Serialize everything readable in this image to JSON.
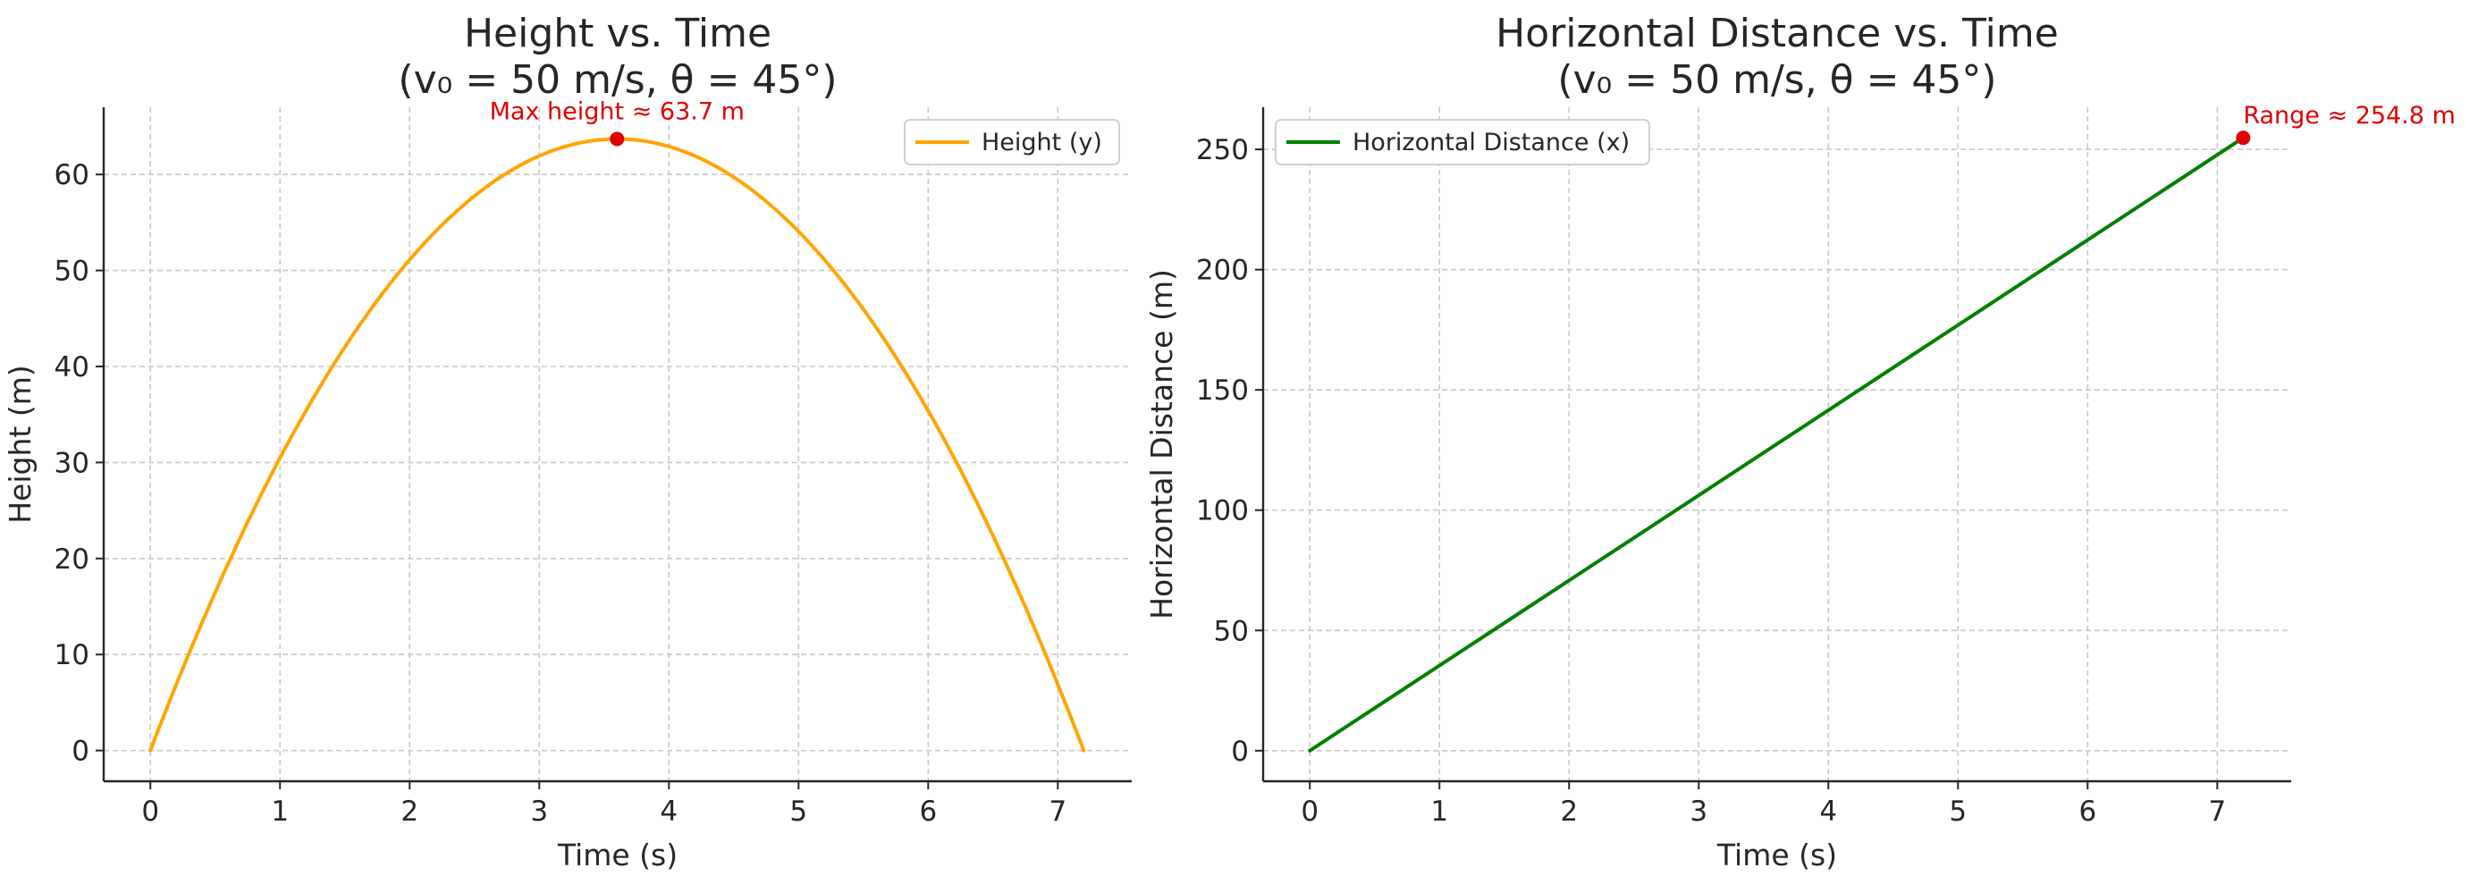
{
  "colors": {
    "height_series": "#ffa500",
    "distance_series": "#008000",
    "annotation": "#e00000",
    "axis": "#262626",
    "grid": "#c8c8c8"
  },
  "chart_data": [
    {
      "type": "line",
      "title_lines": [
        "Height vs. Time",
        "(v₀ = 50 m/s, θ = 45°)"
      ],
      "xlabel": "Time (s)",
      "ylabel": "Height (m)",
      "xlim": [
        -0.36,
        7.57
      ],
      "ylim": [
        -3.2,
        67
      ],
      "xticks": [
        0,
        1,
        2,
        3,
        4,
        5,
        6,
        7
      ],
      "yticks": [
        0,
        10,
        20,
        30,
        40,
        50,
        60
      ],
      "grid": true,
      "legend_position": "upper-right",
      "series": [
        {
          "name": "Height (y)",
          "color": "#ffa500",
          "x": [
            0,
            0.36,
            0.72,
            1.08,
            1.44,
            1.8,
            2.16,
            2.52,
            2.88,
            3.24,
            3.6,
            3.96,
            4.32,
            4.68,
            5.04,
            5.4,
            5.76,
            6.12,
            6.48,
            6.84,
            7.2
          ],
          "values": [
            0,
            12.1,
            22.9,
            32.3,
            40.8,
            47.8,
            53.5,
            58.0,
            61.2,
            63.1,
            63.7,
            63.1,
            61.2,
            58.0,
            53.5,
            47.8,
            40.8,
            32.3,
            22.9,
            12.1,
            0
          ]
        }
      ],
      "annotation": {
        "text": "Max height ≈ 63.7 m",
        "x": 3.6,
        "y": 63.7
      }
    },
    {
      "type": "line",
      "title_lines": [
        "Horizontal Distance vs. Time",
        "(v₀ = 50 m/s, θ = 45°)"
      ],
      "xlabel": "Time (s)",
      "ylabel": "Horizontal Distance (m)",
      "xlim": [
        -0.36,
        7.57
      ],
      "ylim": [
        -12.7,
        267.5
      ],
      "xticks": [
        0,
        1,
        2,
        3,
        4,
        5,
        6,
        7
      ],
      "yticks": [
        0,
        50,
        100,
        150,
        200,
        250
      ],
      "grid": true,
      "legend_position": "upper-left",
      "series": [
        {
          "name": "Horizontal Distance (x)",
          "color": "#008000",
          "x": [
            0,
            7.2
          ],
          "values": [
            0,
            254.8
          ]
        }
      ],
      "annotation": {
        "text": "Range ≈ 254.8 m",
        "x": 7.2,
        "y": 254.8
      }
    }
  ]
}
